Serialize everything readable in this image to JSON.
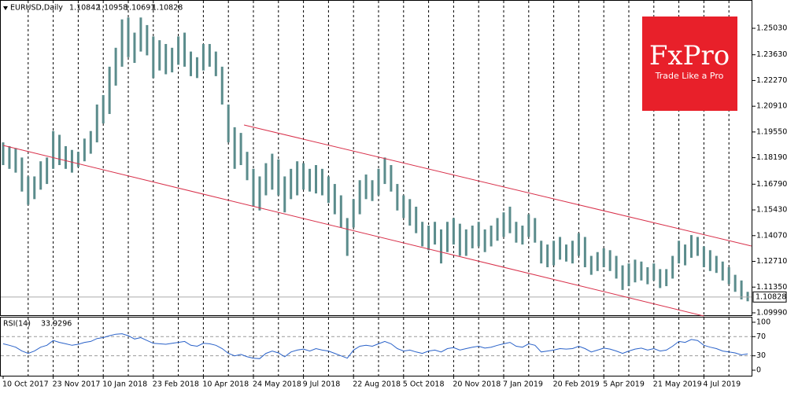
{
  "chart_data": [
    {
      "type": "hlc",
      "title": "EURUSD,Daily",
      "quote": {
        "open": 1.10842,
        "high": 1.10958,
        "low": 1.10691,
        "close": 1.10828
      },
      "color": "#5b8c8c",
      "categories": [
        "10 Oct 2017",
        null,
        null,
        null,
        null,
        null,
        null,
        null,
        "23 Nov 2017",
        null,
        null,
        null,
        null,
        null,
        null,
        null,
        "10 Jan 2018",
        null,
        null,
        null,
        null,
        null,
        null,
        null,
        "23 Feb 2018",
        null,
        null,
        null,
        null,
        null,
        null,
        null,
        "10 Apr 2018",
        null,
        null,
        null,
        null,
        null,
        null,
        null,
        "24 May 2018",
        null,
        null,
        null,
        null,
        null,
        null,
        null,
        "9 Jul 2018",
        null,
        null,
        null,
        null,
        null,
        null,
        null,
        "22 Aug 2018",
        null,
        null,
        null,
        null,
        null,
        null,
        null,
        "5 Oct 2018",
        null,
        null,
        null,
        null,
        null,
        null,
        null,
        "20 Nov 2018",
        null,
        null,
        null,
        null,
        null,
        null,
        null,
        "7 Jan 2019",
        null,
        null,
        null,
        null,
        null,
        null,
        null,
        "20 Feb 2019",
        null,
        null,
        null,
        null,
        null,
        null,
        null,
        "5 Apr 2019",
        null,
        null,
        null,
        null,
        null,
        null,
        null,
        "21 May 2019",
        null,
        null,
        null,
        null,
        null,
        null,
        null,
        "4 Jul 2019",
        null,
        null,
        null,
        null,
        null,
        null,
        null
      ],
      "high": [
        1.19,
        1.188,
        1.187,
        1.182,
        1.172,
        1.172,
        1.18,
        1.182,
        1.196,
        1.194,
        1.188,
        1.186,
        1.185,
        1.192,
        1.196,
        1.21,
        1.215,
        1.23,
        1.24,
        1.255,
        1.256,
        1.248,
        1.256,
        1.252,
        1.246,
        1.244,
        1.242,
        1.24,
        1.246,
        1.248,
        1.238,
        1.235,
        1.242,
        1.242,
        1.238,
        1.23,
        1.21,
        1.198,
        1.195,
        1.185,
        1.176,
        1.172,
        1.179,
        1.184,
        1.181,
        1.172,
        1.176,
        1.18,
        1.179,
        1.176,
        1.178,
        1.176,
        1.172,
        1.168,
        1.162,
        1.15,
        1.16,
        1.17,
        1.173,
        1.17,
        1.176,
        1.182,
        1.178,
        1.168,
        1.162,
        1.16,
        1.156,
        1.148,
        1.146,
        1.148,
        1.144,
        1.148,
        1.15,
        1.147,
        1.144,
        1.146,
        1.148,
        1.144,
        1.146,
        1.15,
        1.153,
        1.156,
        1.148,
        1.146,
        1.152,
        1.15,
        1.138,
        1.136,
        1.138,
        1.14,
        1.136,
        1.138,
        1.142,
        1.14,
        1.13,
        1.132,
        1.134,
        1.133,
        1.13,
        1.125,
        1.126,
        1.128,
        1.127,
        1.124,
        1.126,
        1.123,
        1.123,
        1.13,
        1.138,
        1.136,
        1.141,
        1.14,
        1.135,
        1.133,
        1.13,
        1.127,
        1.124,
        1.12,
        1.117,
        1.111
      ],
      "low": [
        1.178,
        1.176,
        1.174,
        1.164,
        1.157,
        1.16,
        1.165,
        1.168,
        1.176,
        1.178,
        1.176,
        1.174,
        1.177,
        1.18,
        1.184,
        1.19,
        1.2,
        1.205,
        1.22,
        1.23,
        1.235,
        1.232,
        1.238,
        1.236,
        1.224,
        1.228,
        1.226,
        1.227,
        1.231,
        1.23,
        1.225,
        1.224,
        1.228,
        1.23,
        1.225,
        1.21,
        1.19,
        1.176,
        1.178,
        1.17,
        1.156,
        1.154,
        1.162,
        1.165,
        1.162,
        1.153,
        1.16,
        1.162,
        1.165,
        1.164,
        1.163,
        1.162,
        1.158,
        1.152,
        1.145,
        1.13,
        1.145,
        1.152,
        1.16,
        1.159,
        1.162,
        1.168,
        1.164,
        1.154,
        1.15,
        1.146,
        1.142,
        1.135,
        1.133,
        1.136,
        1.126,
        1.132,
        1.136,
        1.13,
        1.13,
        1.134,
        1.135,
        1.132,
        1.135,
        1.138,
        1.14,
        1.142,
        1.137,
        1.136,
        1.14,
        1.137,
        1.126,
        1.124,
        1.125,
        1.128,
        1.127,
        1.126,
        1.13,
        1.124,
        1.12,
        1.122,
        1.124,
        1.122,
        1.118,
        1.112,
        1.114,
        1.116,
        1.117,
        1.115,
        1.117,
        1.113,
        1.114,
        1.118,
        1.126,
        1.125,
        1.129,
        1.13,
        1.124,
        1.122,
        1.121,
        1.117,
        1.115,
        1.111,
        1.107,
        1.106
      ],
      "ylim": [
        1.09865,
        1.26484
      ],
      "yticks": [
        {
          "value": 1.2503,
          "label": "1.25030"
        },
        {
          "value": 1.2363,
          "label": "1.23630"
        },
        {
          "value": 1.2227,
          "label": "1.22270"
        },
        {
          "value": 1.2091,
          "label": "1.20910"
        },
        {
          "value": 1.1955,
          "label": "1.19550"
        },
        {
          "value": 1.1819,
          "label": "1.18190"
        },
        {
          "value": 1.1679,
          "label": "1.16790"
        },
        {
          "value": 1.1543,
          "label": "1.15430"
        },
        {
          "value": 1.1407,
          "label": "1.14070"
        },
        {
          "value": 1.1271,
          "label": "1.12710"
        },
        {
          "value": 1.1135,
          "label": "1.11350"
        },
        {
          "value": 1.0999,
          "label": "1.09990"
        }
      ],
      "trendlines": {
        "color": "#d8304a",
        "lines": [
          {
            "x": [
              38.5,
              119.6
            ],
            "y": [
              1.19919,
              1.13521
            ]
          },
          {
            "x": [
              0,
              112
            ],
            "y": [
              1.18839,
              1.09822
            ]
          }
        ]
      }
    },
    {
      "type": "line",
      "title": "RSI(14)",
      "last": 33.9296,
      "color": "#2a62c9",
      "values": [
        55,
        52,
        48,
        40,
        35,
        40,
        48,
        52,
        62,
        58,
        55,
        52,
        54,
        58,
        60,
        66,
        68,
        72,
        75,
        76,
        72,
        65,
        68,
        62,
        56,
        55,
        54,
        56,
        58,
        60,
        52,
        50,
        56,
        55,
        52,
        45,
        35,
        30,
        33,
        28,
        25,
        24,
        35,
        40,
        36,
        28,
        38,
        42,
        44,
        40,
        45,
        42,
        40,
        35,
        30,
        25,
        42,
        50,
        52,
        50,
        55,
        60,
        55,
        45,
        40,
        42,
        38,
        35,
        40,
        42,
        38,
        45,
        47,
        42,
        45,
        48,
        50,
        46,
        48,
        52,
        55,
        58,
        50,
        48,
        55,
        52,
        38,
        40,
        42,
        45,
        44,
        45,
        50,
        45,
        38,
        42,
        46,
        44,
        40,
        35,
        40,
        44,
        46,
        42,
        45,
        40,
        42,
        50,
        60,
        58,
        64,
        62,
        52,
        48,
        45,
        40,
        38,
        36,
        32,
        34
      ],
      "ylim": [
        -11.5,
        109.8
      ],
      "yticks": [
        100,
        70,
        30,
        0
      ],
      "levels": [
        70,
        30
      ]
    }
  ],
  "logo": {
    "name": "FxPro",
    "tagline": "Trade Like a Pro"
  }
}
